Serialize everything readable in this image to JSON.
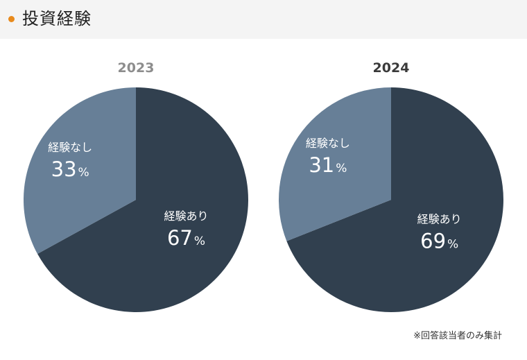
{
  "header": {
    "title": "投資経験"
  },
  "colors": {
    "accent_dot": "#e88a1c",
    "experienced": "#31404f",
    "not_experienced": "#677f97",
    "title_2023": "#8d8d8d",
    "title_2024": "#3a3a3a"
  },
  "chart_data": [
    {
      "type": "pie",
      "title": "2023",
      "slices": [
        {
          "label": "経験あり",
          "value": 67,
          "display": "67",
          "unit": "%"
        },
        {
          "label": "経験なし",
          "value": 33,
          "display": "33",
          "unit": "%"
        }
      ]
    },
    {
      "type": "pie",
      "title": "2024",
      "slices": [
        {
          "label": "経験あり",
          "value": 69,
          "display": "69",
          "unit": "%"
        },
        {
          "label": "経験なし",
          "value": 31,
          "display": "31",
          "unit": "%"
        }
      ]
    }
  ],
  "footnote": "※回答該当者のみ集計"
}
